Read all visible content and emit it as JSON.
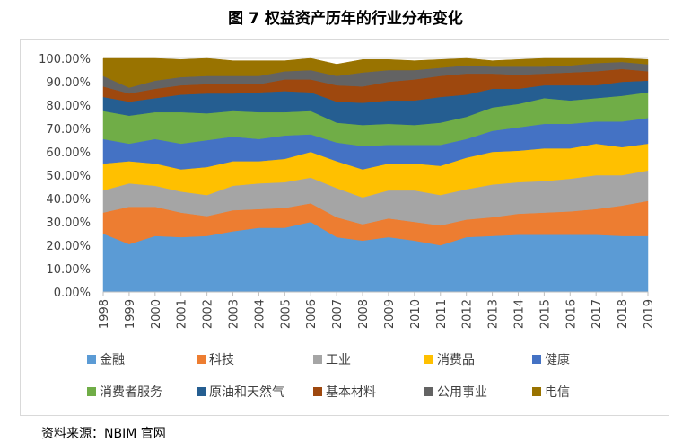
{
  "title": "图 7   权益资产历年的行业分布变化",
  "source": "资料来源：NBIM 官网",
  "chart_data": {
    "type": "area",
    "stacked": true,
    "x": [
      "1998",
      "1999",
      "2000",
      "2001",
      "2002",
      "2003",
      "2004",
      "2005",
      "2006",
      "2007",
      "2008",
      "2009",
      "2010",
      "2011",
      "2012",
      "2013",
      "2014",
      "2015",
      "2016",
      "2017",
      "2018",
      "2019"
    ],
    "ylim": [
      0,
      100
    ],
    "yticks": [
      "0.00%",
      "10.00%",
      "20.00%",
      "30.00%",
      "40.00%",
      "50.00%",
      "60.00%",
      "70.00%",
      "80.00%",
      "90.00%",
      "100.00%"
    ],
    "grid": true,
    "legend_position": "bottom",
    "series": [
      {
        "name": "金融",
        "color": "#5b9bd5",
        "values": [
          25,
          20.5,
          24,
          23.5,
          24,
          26,
          27.5,
          27.5,
          30,
          23.5,
          22,
          23.5,
          22,
          20,
          23.5,
          24,
          24.5,
          24.5,
          24.5,
          24.5,
          24,
          24
        ]
      },
      {
        "name": "科技",
        "color": "#ed7d31",
        "values": [
          9,
          16,
          12.5,
          10.5,
          8.5,
          9,
          8,
          8.5,
          8,
          8.5,
          7,
          8,
          8,
          8.5,
          7.5,
          8,
          9,
          9.5,
          10,
          11,
          13,
          15
        ]
      },
      {
        "name": "工业",
        "color": "#a5a5a5",
        "values": [
          9.5,
          10,
          9,
          9,
          9,
          10.5,
          11,
          11,
          11,
          12.5,
          11.5,
          12,
          13.5,
          13,
          13,
          14,
          13.5,
          13.5,
          14,
          14.5,
          13,
          13
        ]
      },
      {
        "name": "消费品",
        "color": "#ffc000",
        "values": [
          11.5,
          9.5,
          9.5,
          9.5,
          12,
          10.5,
          9.5,
          10,
          11,
          11.5,
          12,
          11.5,
          11.5,
          12.5,
          13.5,
          14,
          13.5,
          14,
          13,
          13.5,
          12,
          11.5
        ]
      },
      {
        "name": "健康",
        "color": "#4472c4",
        "values": [
          10.5,
          7.5,
          10.5,
          11,
          11.5,
          10.5,
          9.5,
          10,
          7.5,
          8,
          10,
          8,
          8,
          9,
          8,
          9,
          10,
          10.5,
          10.5,
          9.5,
          11,
          11
        ]
      },
      {
        "name": "消费者服务",
        "color": "#70ad47",
        "values": [
          12,
          12,
          11.5,
          13.5,
          11.5,
          11,
          11.5,
          10,
          10,
          8.5,
          9,
          9,
          8.5,
          9.5,
          9.5,
          10,
          10,
          11,
          10,
          10,
          11,
          11
        ]
      },
      {
        "name": "原油和天然气",
        "color": "#255e91",
        "values": [
          6,
          6,
          6,
          7.5,
          8.5,
          7.5,
          8.5,
          9,
          8,
          9,
          9.5,
          10,
          10.5,
          11,
          9.5,
          8,
          6.5,
          5.5,
          6.5,
          5.5,
          6,
          5
        ]
      },
      {
        "name": "基本材料",
        "color": "#9e480e",
        "values": [
          4.5,
          3.5,
          4,
          4,
          4,
          4,
          3.5,
          5,
          5.5,
          7,
          7,
          8,
          9,
          9,
          9,
          6.5,
          6,
          5,
          5.5,
          6,
          5.5,
          4
        ]
      },
      {
        "name": "公用事业",
        "color": "#636363",
        "values": [
          4.5,
          2.5,
          3.5,
          3.5,
          3.5,
          3.5,
          3.5,
          3.5,
          4,
          4,
          6,
          5,
          4,
          3.5,
          3.5,
          3,
          3.5,
          3,
          3,
          3.5,
          3,
          3
        ]
      },
      {
        "name": "电信",
        "color": "#997300",
        "values": [
          8,
          12.5,
          9.5,
          7.5,
          7.5,
          6.5,
          6.5,
          4.5,
          5,
          5,
          5.5,
          4.5,
          4,
          3.5,
          3,
          2.5,
          3,
          3.5,
          3,
          2,
          1.5,
          2
        ]
      }
    ]
  }
}
